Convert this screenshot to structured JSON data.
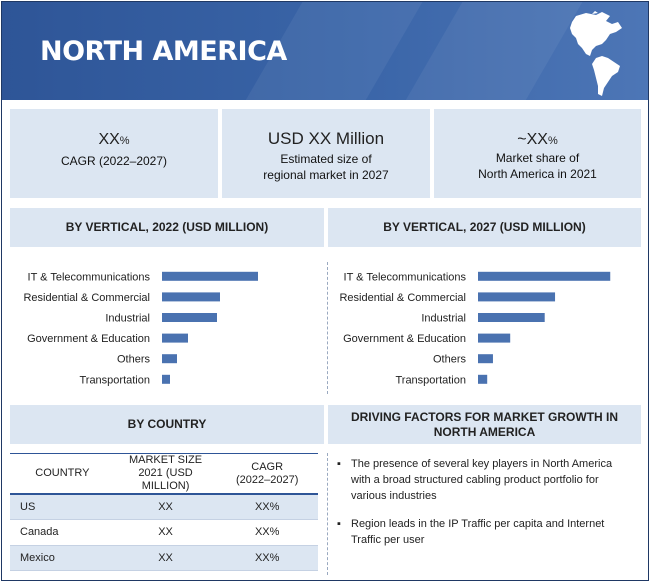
{
  "banner": {
    "title": "NORTH AMERICA"
  },
  "stats": [
    {
      "value": "XX",
      "unit": "%",
      "label_line1": "CAGR (2022–2027)",
      "label_line2": ""
    },
    {
      "value": "USD XX Million",
      "unit": "",
      "label_line1": "Estimated size of",
      "label_line2": "regional market in 2027"
    },
    {
      "value": "~XX",
      "unit": "%",
      "label_line1": "Market share of",
      "label_line2": "North America in 2021"
    }
  ],
  "sections": {
    "vertical_2022": "BY VERTICAL, 2022 (USD MILLION)",
    "vertical_2027": "BY VERTICAL, 2027 (USD MILLION)",
    "by_country": "BY COUNTRY",
    "drivers_line1": "DRIVING FACTORS FOR MARKET GROWTH IN",
    "drivers_line2": "NORTH AMERICA"
  },
  "colors": {
    "banner": "#2e5597",
    "bar": "#4a72b0",
    "panel": "#dce6f2"
  },
  "chart_data": [
    {
      "type": "bar",
      "orientation": "horizontal",
      "title": "BY VERTICAL, 2022 (USD MILLION)",
      "categories": [
        "IT & Telecommunications",
        "Residential & Commercial",
        "Industrial",
        "Government & Education",
        "Others",
        "Transportation"
      ],
      "values": [
        96,
        58,
        55,
        26,
        15,
        8
      ],
      "xlabel": "",
      "ylabel": "",
      "xlim": [
        0,
        100
      ],
      "grid": false
    },
    {
      "type": "bar",
      "orientation": "horizontal",
      "title": "BY VERTICAL, 2027 (USD MILLION)",
      "categories": [
        "IT & Telecommunications",
        "Residential & Commercial",
        "Industrial",
        "Government & Education",
        "Others",
        "Transportation"
      ],
      "values": [
        115,
        67,
        58,
        28,
        13,
        8
      ],
      "xlabel": "",
      "ylabel": "",
      "xlim": [
        0,
        120
      ],
      "grid": false
    }
  ],
  "country_table": {
    "headers": [
      {
        "line1": "COUNTRY",
        "line2": ""
      },
      {
        "line1": "MARKET SIZE",
        "line2": "2021 (USD MILLION)"
      },
      {
        "line1": "CAGR",
        "line2": "(2022–2027)"
      }
    ],
    "rows": [
      {
        "country": "US",
        "size": "XX",
        "cagr": "XX%"
      },
      {
        "country": "Canada",
        "size": "XX",
        "cagr": "XX%"
      },
      {
        "country": "Mexico",
        "size": "XX",
        "cagr": "XX%"
      }
    ]
  },
  "drivers": [
    "The presence of several key players in North America with a broad structured cabling product portfolio for various industries",
    "Region leads in the IP Traffic per capita and Internet Traffic per user"
  ]
}
